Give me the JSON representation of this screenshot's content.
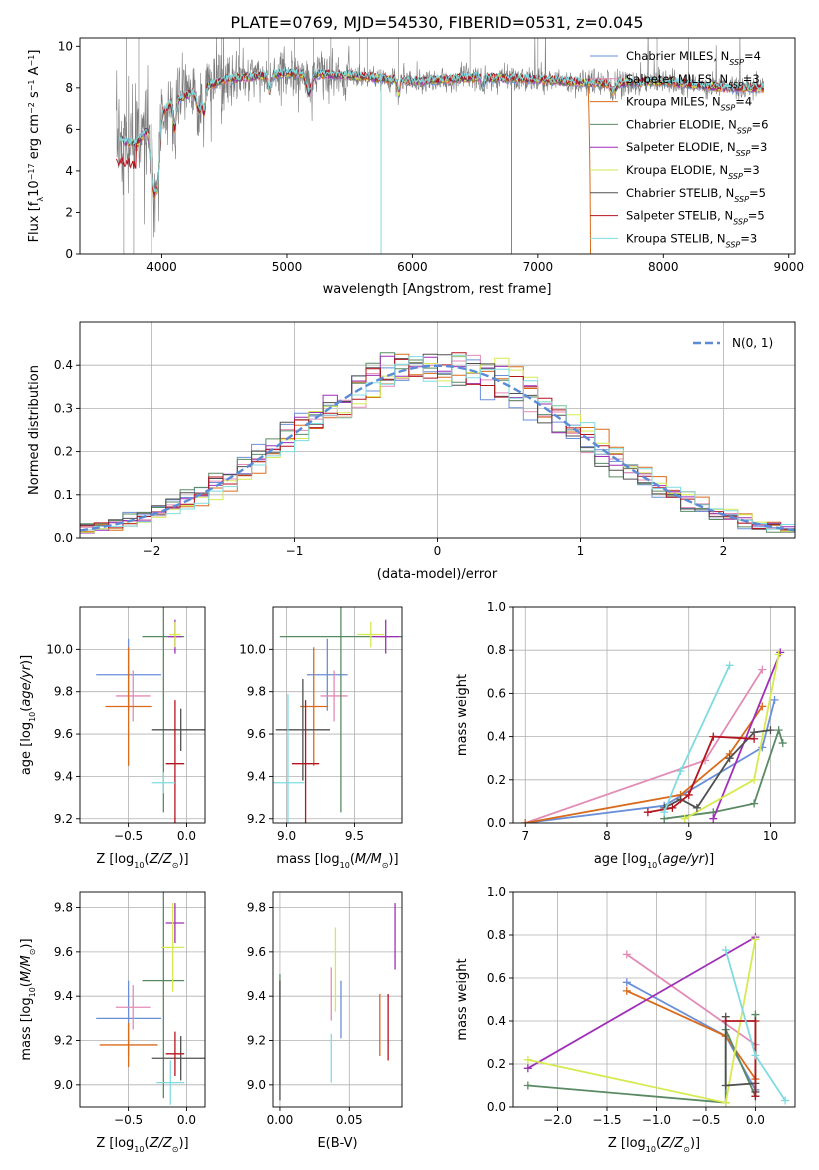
{
  "figure": {
    "title": "PLATE=0769, MJD=54530, FIBERID=0531, z=0.045"
  },
  "colors": {
    "Chabrier MILES": "#6a8fd8",
    "Salpeter MILES": "#e28bb6",
    "Kroupa MILES": "#d96b1c",
    "Chabrier ELODIE": "#5a8a64",
    "Salpeter ELODIE": "#9f2fb8",
    "Kroupa ELODIE": "#d6ea50",
    "Chabrier STELIB": "#505050",
    "Salpeter STELIB": "#b4141e",
    "Kroupa STELIB": "#7fdbe0",
    "normal": "#5b8bd6"
  },
  "chart_data": [
    {
      "type": "line",
      "title": "PLATE=0769, MJD=54530, FIBERID=0531, z=0.045",
      "xlabel": "wavelength [Angstrom, rest frame]",
      "ylabel": "Flux [f_λ 10^-17 erg cm^-2 s^-1 A^-1]",
      "xlim": [
        3350,
        9050
      ],
      "ylim": [
        0,
        10.4
      ],
      "xticks": [
        "4000",
        "5000",
        "6000",
        "7000",
        "8000",
        "9000"
      ],
      "yticks": [
        "0",
        "2",
        "4",
        "6",
        "8",
        "10"
      ],
      "legend_position": "right",
      "legend": [
        {
          "label": "Chabrier MILES",
          "ssp": "4"
        },
        {
          "label": "Salpeter MILES",
          "ssp": "3"
        },
        {
          "label": "Kroupa MILES",
          "ssp": "4"
        },
        {
          "label": "Chabrier ELODIE",
          "ssp": "6"
        },
        {
          "label": "Salpeter ELODIE",
          "ssp": "3"
        },
        {
          "label": "Kroupa ELODIE",
          "ssp": "3"
        },
        {
          "label": "Chabrier STELIB",
          "ssp": "5"
        },
        {
          "label": "Salpeter STELIB",
          "ssp": "5"
        },
        {
          "label": "Kroupa STELIB",
          "ssp": "3"
        }
      ],
      "data_range": [
        3640,
        8800
      ],
      "continuum": [
        [
          3640,
          5.5
        ],
        [
          3800,
          5.3
        ],
        [
          3950,
          6.5
        ],
        [
          4100,
          7.4
        ],
        [
          4500,
          8.4
        ],
        [
          5000,
          8.7
        ],
        [
          5500,
          8.6
        ],
        [
          6000,
          8.3
        ],
        [
          6500,
          8.5
        ],
        [
          7000,
          8.4
        ],
        [
          7500,
          8.2
        ],
        [
          8000,
          8.3
        ],
        [
          8500,
          8.0
        ],
        [
          8800,
          8.0
        ]
      ]
    },
    {
      "type": "histogram",
      "xlabel": "(data-model)/error",
      "ylabel": "Normed distribution",
      "xlim": [
        -2.5,
        2.5
      ],
      "ylim": [
        0,
        0.5
      ],
      "xticks": [
        "−2",
        "−1",
        "0",
        "1",
        "2"
      ],
      "yticks": [
        "0.0",
        "0.1",
        "0.2",
        "0.3",
        "0.4"
      ],
      "legend_position": "top-right",
      "legend": [
        {
          "label": "N(0, 1)",
          "style": "dashed"
        }
      ],
      "bin_width": 0.1,
      "curve": "standard normal density"
    },
    {
      "type": "scatter",
      "xlabel": "Z [log10(Z/Z⊙)]",
      "ylabel": "age [log10(age/yr)]",
      "xlim": [
        -0.92,
        0.16
      ],
      "ylim": [
        9.18,
        10.2
      ],
      "xticks": [
        "−0.5",
        "0.0"
      ],
      "yticks": [
        "9.2",
        "9.4",
        "9.6",
        "9.8",
        "10.0"
      ],
      "points": [
        {
          "series": "Chabrier MILES",
          "x": -0.5,
          "y": 9.88,
          "xerr": 0.28,
          "yerr": 0.17
        },
        {
          "series": "Salpeter MILES",
          "x": -0.46,
          "y": 9.78,
          "xerr": 0.15,
          "yerr": 0.12
        },
        {
          "series": "Kroupa MILES",
          "x": -0.5,
          "y": 9.73,
          "xerr": 0.2,
          "yerr": 0.28
        },
        {
          "series": "Chabrier ELODIE",
          "x": -0.2,
          "y": 10.06,
          "xerr": 0.18,
          "yerr": 0.83
        },
        {
          "series": "Salpeter ELODIE",
          "x": -0.1,
          "y": 10.06,
          "xerr": 0.06,
          "yerr": 0.08
        },
        {
          "series": "Kroupa ELODIE",
          "x": -0.1,
          "y": 10.07,
          "xerr": 0.05,
          "yerr": 0.06
        },
        {
          "series": "Chabrier STELIB",
          "x": -0.05,
          "y": 9.62,
          "xerr": 0.25,
          "yerr": 0.1
        },
        {
          "series": "Salpeter STELIB",
          "x": -0.1,
          "y": 9.46,
          "xerr": 0.08,
          "yerr": 0.3
        },
        {
          "series": "Kroupa STELIB",
          "x": -0.2,
          "y": 9.37,
          "xerr": 0.1,
          "yerr": 0.05
        }
      ]
    },
    {
      "type": "scatter",
      "xlabel": "mass [log10(M/M⊙)]",
      "xlim": [
        8.9,
        9.85
      ],
      "ylim": [
        9.18,
        10.2
      ],
      "xticks": [
        "9.0",
        "9.5"
      ],
      "yticks": [
        "9.2",
        "9.4",
        "9.6",
        "9.8",
        "10.0"
      ],
      "points": [
        {
          "series": "Chabrier MILES",
          "x": 9.3,
          "y": 9.88,
          "xerr": 0.15,
          "yerr": 0.17
        },
        {
          "series": "Salpeter MILES",
          "x": 9.35,
          "y": 9.78,
          "xerr": 0.1,
          "yerr": 0.12
        },
        {
          "series": "Kroupa MILES",
          "x": 9.2,
          "y": 9.73,
          "xerr": 0.1,
          "yerr": 0.28
        },
        {
          "series": "Chabrier ELODIE",
          "x": 9.4,
          "y": 10.06,
          "xerr": 0.45,
          "yerr": 0.83
        },
        {
          "series": "Salpeter ELODIE",
          "x": 9.73,
          "y": 10.06,
          "xerr": 0.1,
          "yerr": 0.08
        },
        {
          "series": "Kroupa ELODIE",
          "x": 9.62,
          "y": 10.07,
          "xerr": 0.1,
          "yerr": 0.06
        },
        {
          "series": "Chabrier STELIB",
          "x": 9.12,
          "y": 9.62,
          "xerr": 0.2,
          "yerr": 0.24
        },
        {
          "series": "Salpeter STELIB",
          "x": 9.14,
          "y": 9.46,
          "xerr": 0.1,
          "yerr": 0.3
        },
        {
          "series": "Kroupa STELIB",
          "x": 9.01,
          "y": 9.37,
          "xerr": 0.12,
          "yerr": 0.42
        }
      ]
    },
    {
      "type": "line",
      "xlabel": "age  [log10(age/yr)]",
      "ylabel": "mass weight",
      "xlim": [
        6.85,
        10.3
      ],
      "ylim": [
        0,
        1.0
      ],
      "xticks": [
        "7",
        "8",
        "9",
        "10"
      ],
      "yticks": [
        "0.0",
        "0.2",
        "0.4",
        "0.6",
        "0.8",
        "1.0"
      ],
      "series": [
        {
          "name": "Chabrier MILES",
          "points": [
            [
              7.0,
              0.0
            ],
            [
              8.7,
              0.08
            ],
            [
              9.9,
              0.35
            ],
            [
              10.05,
              0.57
            ]
          ]
        },
        {
          "name": "Salpeter MILES",
          "points": [
            [
              7.0,
              0.0
            ],
            [
              9.2,
              0.29
            ],
            [
              9.9,
              0.71
            ]
          ]
        },
        {
          "name": "Kroupa MILES",
          "points": [
            [
              7.0,
              0.0
            ],
            [
              8.9,
              0.13
            ],
            [
              9.5,
              0.32
            ],
            [
              9.9,
              0.54
            ]
          ]
        },
        {
          "name": "Chabrier ELODIE",
          "points": [
            [
              8.7,
              0.02
            ],
            [
              9.3,
              0.05
            ],
            [
              9.8,
              0.09
            ],
            [
              10.1,
              0.43
            ],
            [
              10.15,
              0.37
            ]
          ]
        },
        {
          "name": "Salpeter ELODIE",
          "points": [
            [
              9.3,
              0.02
            ],
            [
              10.12,
              0.79
            ]
          ]
        },
        {
          "name": "Kroupa ELODIE",
          "points": [
            [
              8.95,
              0.02
            ],
            [
              9.8,
              0.2
            ],
            [
              10.1,
              0.78
            ]
          ]
        },
        {
          "name": "Chabrier STELIB",
          "points": [
            [
              8.7,
              0.07
            ],
            [
              8.9,
              0.11
            ],
            [
              9.1,
              0.07
            ],
            [
              9.5,
              0.3
            ],
            [
              9.8,
              0.42
            ],
            [
              10.0,
              0.43
            ]
          ]
        },
        {
          "name": "Salpeter STELIB",
          "points": [
            [
              8.5,
              0.05
            ],
            [
              8.8,
              0.07
            ],
            [
              9.0,
              0.13
            ],
            [
              9.3,
              0.4
            ],
            [
              9.8,
              0.39
            ]
          ]
        },
        {
          "name": "Kroupa STELIB",
          "points": [
            [
              8.7,
              0.05
            ],
            [
              8.9,
              0.24
            ],
            [
              9.5,
              0.73
            ]
          ]
        }
      ]
    },
    {
      "type": "scatter",
      "xlabel": "Z [log10(Z/Z⊙)]",
      "ylabel": "mass [log10(M/M⊙)]",
      "xlim": [
        -0.92,
        0.16
      ],
      "ylim": [
        8.9,
        9.87
      ],
      "xticks": [
        "−0.5",
        "0.0"
      ],
      "yticks": [
        "9.0",
        "9.2",
        "9.4",
        "9.6",
        "9.8"
      ],
      "points": [
        {
          "series": "Chabrier MILES",
          "x": -0.5,
          "y": 9.3,
          "xerr": 0.28,
          "yerr": 0.17
        },
        {
          "series": "Salpeter MILES",
          "x": -0.46,
          "y": 9.35,
          "xerr": 0.15,
          "yerr": 0.1
        },
        {
          "series": "Kroupa MILES",
          "x": -0.5,
          "y": 9.18,
          "xerr": 0.25,
          "yerr": 0.1
        },
        {
          "series": "Chabrier ELODIE",
          "x": -0.2,
          "y": 9.47,
          "xerr": 0.18,
          "yerr": 0.53
        },
        {
          "series": "Salpeter ELODIE",
          "x": -0.1,
          "y": 9.73,
          "xerr": 0.08,
          "yerr": 0.09
        },
        {
          "series": "Kroupa ELODIE",
          "x": -0.12,
          "y": 9.62,
          "xerr": 0.1,
          "yerr": 0.2
        },
        {
          "series": "Chabrier STELIB",
          "x": -0.05,
          "y": 9.12,
          "xerr": 0.25,
          "yerr": 0.1
        },
        {
          "series": "Salpeter STELIB",
          "x": -0.1,
          "y": 9.14,
          "xerr": 0.08,
          "yerr": 0.1
        },
        {
          "series": "Kroupa STELIB",
          "x": -0.14,
          "y": 9.01,
          "xerr": 0.12,
          "yerr": 0.1
        }
      ]
    },
    {
      "type": "scatter",
      "xlabel": "E(B-V)",
      "xlim": [
        -0.005,
        0.088
      ],
      "ylim": [
        8.9,
        9.87
      ],
      "xticks": [
        "0.00",
        "0.05"
      ],
      "yticks": [
        "9.0",
        "9.2",
        "9.4",
        "9.6",
        "9.8"
      ],
      "points": [
        {
          "series": "Chabrier MILES",
          "x": 0.044,
          "y": 9.34,
          "yerr": 0.13
        },
        {
          "series": "Salpeter MILES",
          "x": 0.037,
          "y": 9.41,
          "yerr": 0.12
        },
        {
          "series": "Kroupa MILES",
          "x": 0.072,
          "y": 9.27,
          "yerr": 0.14
        },
        {
          "series": "Chabrier ELODIE",
          "x": 0.0,
          "y": 9.25,
          "yerr": 0.25
        },
        {
          "series": "Salpeter ELODIE",
          "x": 0.083,
          "y": 9.67,
          "yerr": 0.15
        },
        {
          "series": "Kroupa ELODIE",
          "x": 0.04,
          "y": 9.52,
          "yerr": 0.19
        },
        {
          "series": "Chabrier STELIB",
          "x": 0.0,
          "y": 9.2,
          "yerr": 0.27
        },
        {
          "series": "Salpeter STELIB",
          "x": 0.078,
          "y": 9.26,
          "yerr": 0.15
        },
        {
          "series": "Kroupa STELIB",
          "x": 0.037,
          "y": 9.12,
          "yerr": 0.11
        }
      ]
    },
    {
      "type": "line",
      "xlabel": "Z [log10(Z/Z⊙)]",
      "ylabel": "mass weight",
      "xlim": [
        -2.45,
        0.4
      ],
      "ylim": [
        0,
        1.0
      ],
      "xticks": [
        "−2.0",
        "−1.5",
        "−1.0",
        "−0.5",
        "0.0"
      ],
      "yticks": [
        "0.0",
        "0.2",
        "0.4",
        "0.6",
        "0.8",
        "1.0"
      ],
      "series": [
        {
          "name": "Chabrier MILES",
          "points": [
            [
              -1.3,
              0.58
            ],
            [
              -0.3,
              0.33
            ],
            [
              0.0,
              0.08
            ]
          ]
        },
        {
          "name": "Salpeter MILES",
          "points": [
            [
              -1.3,
              0.71
            ],
            [
              0.0,
              0.29
            ]
          ]
        },
        {
          "name": "Kroupa MILES",
          "points": [
            [
              -1.3,
              0.54
            ],
            [
              -0.3,
              0.33
            ],
            [
              0.0,
              0.13
            ]
          ]
        },
        {
          "name": "Chabrier ELODIE",
          "points": [
            [
              -2.3,
              0.1
            ],
            [
              -0.3,
              0.02
            ],
            [
              -0.3,
              0.36
            ],
            [
              0.0,
              0.05
            ],
            [
              0.0,
              0.43
            ]
          ]
        },
        {
          "name": "Salpeter ELODIE",
          "points": [
            [
              -2.3,
              0.18
            ],
            [
              0.0,
              0.79
            ]
          ]
        },
        {
          "name": "Kroupa ELODIE",
          "points": [
            [
              -2.3,
              0.22
            ],
            [
              -0.3,
              0.02
            ],
            [
              0.0,
              0.78
            ]
          ]
        },
        {
          "name": "Chabrier STELIB",
          "points": [
            [
              -0.3,
              0.42
            ],
            [
              -0.3,
              0.1
            ],
            [
              0.0,
              0.11
            ],
            [
              0.0,
              0.07
            ]
          ]
        },
        {
          "name": "Salpeter STELIB",
          "points": [
            [
              -0.3,
              0.4
            ],
            [
              0.0,
              0.4
            ],
            [
              0.0,
              0.05
            ]
          ]
        },
        {
          "name": "Kroupa STELIB",
          "points": [
            [
              -0.3,
              0.73
            ],
            [
              0.0,
              0.24
            ],
            [
              0.3,
              0.03
            ]
          ]
        }
      ]
    }
  ]
}
